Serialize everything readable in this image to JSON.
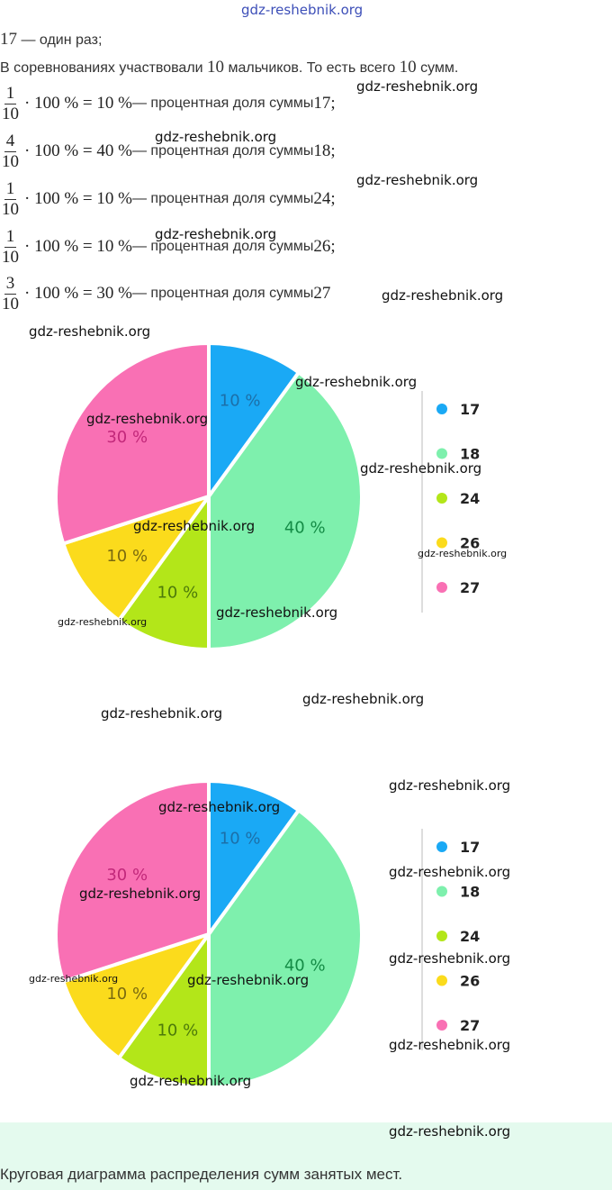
{
  "header": {
    "site": "gdz-reshebnik.org"
  },
  "intro_line": {
    "math": "17",
    "text": " — один раз;"
  },
  "participants_line": {
    "text_a": "В соревнованиях участвовали ",
    "math_a": "10",
    "text_b": " мальчиков. То есть всего ",
    "math_b": "10",
    "text_c": " сумм."
  },
  "fractions": [
    {
      "num": "1",
      "den": "10",
      "expr": "· 100 % = 10 %",
      "text": " — процентная доля суммы ",
      "sum": "17;"
    },
    {
      "num": "4",
      "den": "10",
      "expr": "· 100 % = 40 %",
      "text": " — процентная доля суммы ",
      "sum": "18;"
    },
    {
      "num": "1",
      "den": "10",
      "expr": "· 100 % = 10 %",
      "text": " — процентная доля суммы ",
      "sum": "24;"
    },
    {
      "num": "1",
      "den": "10",
      "expr": "· 100 % = 10 %",
      "text": " — процентная доля суммы ",
      "sum": "26;"
    },
    {
      "num": "3",
      "den": "10",
      "expr": "· 100 % = 30 %",
      "text": " — процентная доля суммы ",
      "sum": "27"
    }
  ],
  "chart_data": [
    {
      "type": "pie",
      "categories": [
        "17",
        "18",
        "24",
        "26",
        "27"
      ],
      "values": [
        10,
        40,
        10,
        10,
        30
      ],
      "labels": [
        "10 %",
        "40 %",
        "10 %",
        "10 %",
        "30 %"
      ],
      "colors": [
        "#1aa9f5",
        "#7ef0ad",
        "#b3e619",
        "#fbdb1c",
        "#f970b4"
      ],
      "label_colors": [
        "#1c6fa8",
        "#138b45",
        "#4d7a0a",
        "#7a6a10",
        "#c2287a"
      ],
      "legend_position": "right"
    },
    {
      "type": "pie",
      "categories": [
        "17",
        "18",
        "24",
        "26",
        "27"
      ],
      "values": [
        10,
        40,
        10,
        10,
        30
      ],
      "labels": [
        "10 %",
        "40 %",
        "10 %",
        "10 %",
        "30 %"
      ],
      "colors": [
        "#1aa9f5",
        "#7ef0ad",
        "#b3e619",
        "#fbdb1c",
        "#f970b4"
      ],
      "label_colors": [
        "#1c6fa8",
        "#138b45",
        "#4d7a0a",
        "#7a6a10",
        "#c2287a"
      ],
      "legend_position": "right"
    }
  ],
  "caption": "Круговая диаграмма распределения сумм занятых мест."
}
